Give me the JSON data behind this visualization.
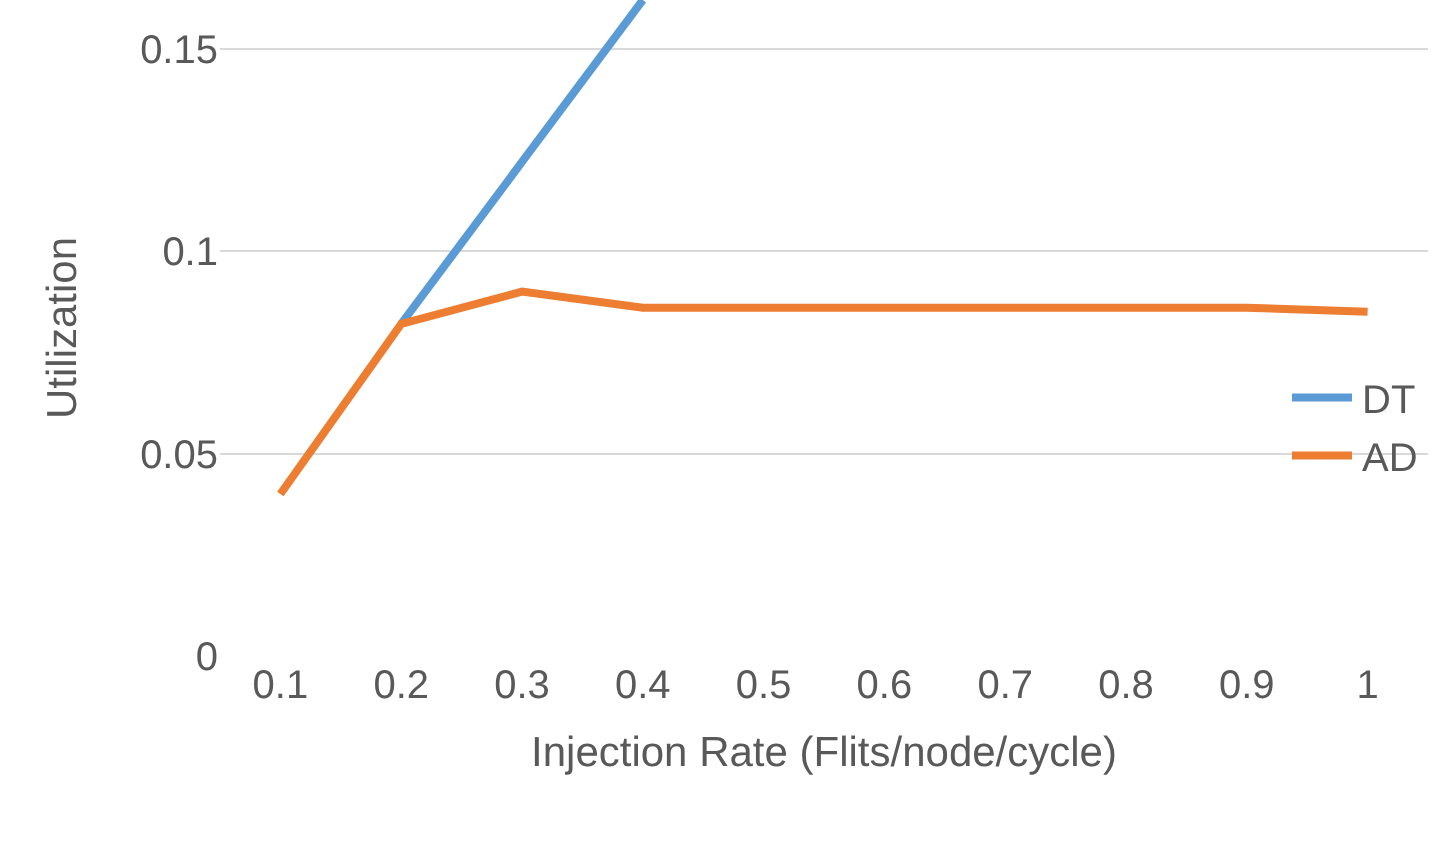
{
  "chart_data": {
    "type": "line",
    "xlabel": "Injection Rate (Flits/node/cycle)",
    "ylabel": "Utilization",
    "categories": [
      "0.1",
      "0.2",
      "0.3",
      "0.4",
      "0.5",
      "0.6",
      "0.7",
      "0.8",
      "0.9",
      "1"
    ],
    "series": [
      {
        "name": "DT",
        "color": "#5b9bd5",
        "values": [
          null,
          0.082,
          0.122,
          0.162,
          null,
          null,
          null,
          null,
          null,
          null
        ]
      },
      {
        "name": "AD",
        "color": "#ed7d31",
        "values": [
          0.04,
          0.082,
          0.09,
          0.086,
          0.086,
          0.086,
          0.086,
          0.086,
          0.086,
          0.085
        ]
      }
    ],
    "ylim": [
      0,
      0.162
    ],
    "yticks": [
      0,
      0.05,
      0.1,
      0.15
    ],
    "grid": "y",
    "legend": "right",
    "marker": "none",
    "line_style": "solid"
  }
}
